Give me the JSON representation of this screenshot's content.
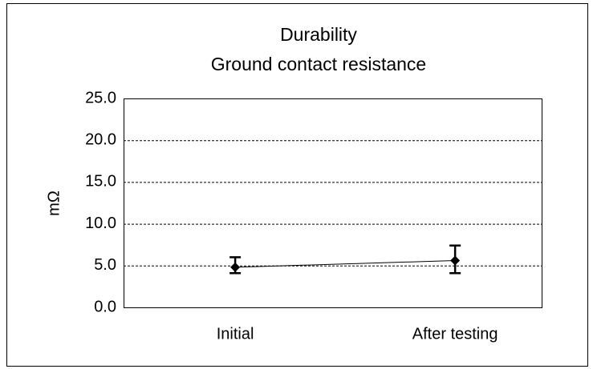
{
  "chart_data": {
    "type": "line",
    "title": [
      "Durability",
      "Ground contact resistance"
    ],
    "ylabel": "mΩ",
    "categories": [
      "Initial",
      "After testing"
    ],
    "series": [
      {
        "name": "Ground contact resistance",
        "color": "#000000",
        "values": [
          4.8,
          5.6
        ],
        "low": [
          4.1,
          4.1
        ],
        "high": [
          6.0,
          7.4
        ]
      }
    ],
    "ylim": [
      0,
      25
    ],
    "yticks": [
      {
        "value": 0,
        "label": "0.0"
      },
      {
        "value": 5,
        "label": "5.0"
      },
      {
        "value": 10,
        "label": "10.0"
      },
      {
        "value": 15,
        "label": "15.0"
      },
      {
        "value": 20,
        "label": "20.0"
      },
      {
        "value": 25,
        "label": "25.0"
      }
    ],
    "grid": true
  }
}
